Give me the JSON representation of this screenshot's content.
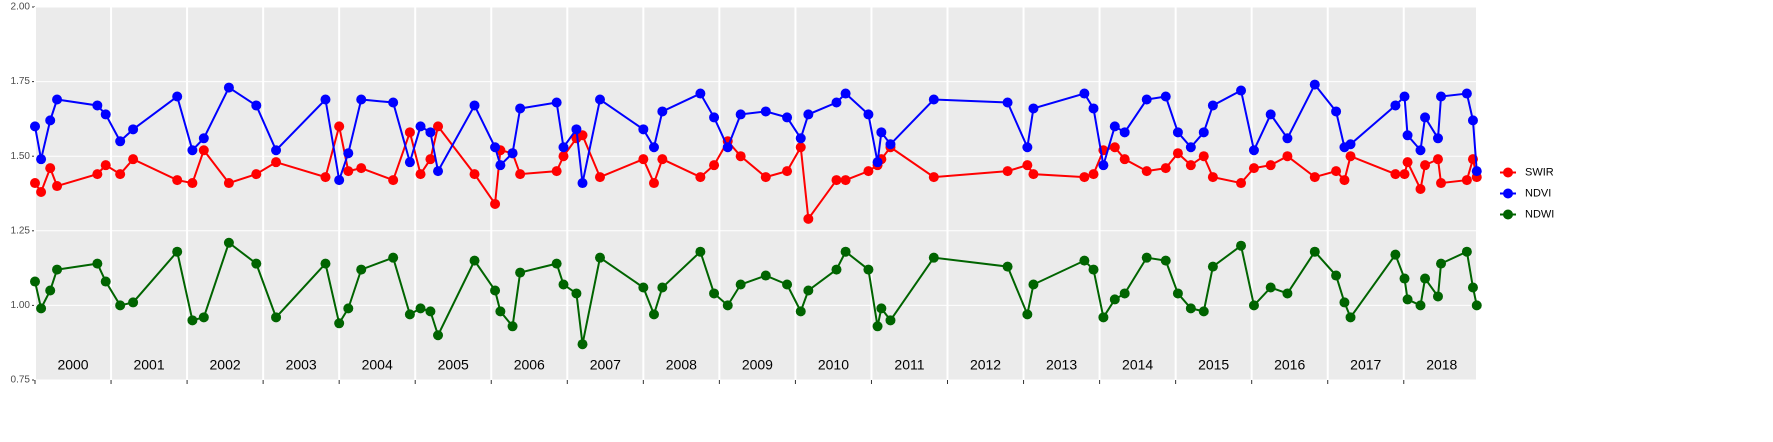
{
  "chart_data": {
    "type": "line",
    "x": [
      2000.0,
      2000.08,
      2000.2,
      2000.29,
      2000.82,
      2000.93,
      2001.12,
      2001.29,
      2001.87,
      2002.07,
      2002.22,
      2002.55,
      2002.91,
      2003.17,
      2003.82,
      2004.0,
      2004.12,
      2004.29,
      2004.71,
      2004.93,
      2005.07,
      2005.2,
      2005.3,
      2005.78,
      2006.05,
      2006.12,
      2006.28,
      2006.38,
      2006.86,
      2006.95,
      2007.12,
      2007.2,
      2007.43,
      2008.0,
      2008.14,
      2008.25,
      2008.75,
      2008.93,
      2009.11,
      2009.28,
      2009.61,
      2009.89,
      2010.07,
      2010.17,
      2010.54,
      2010.66,
      2010.96,
      2011.08,
      2011.13,
      2011.25,
      2011.82,
      2012.79,
      2013.05,
      2013.13,
      2013.8,
      2013.92,
      2014.05,
      2014.2,
      2014.33,
      2014.62,
      2014.87,
      2015.03,
      2015.2,
      2015.37,
      2015.49,
      2015.86,
      2016.03,
      2016.25,
      2016.47,
      2016.83,
      2017.11,
      2017.22,
      2017.3,
      2017.89,
      2018.01,
      2018.05,
      2018.22,
      2018.28,
      2018.45,
      2018.49,
      2018.83,
      2018.91,
      2018.96
    ],
    "series": [
      {
        "name": "SWIR",
        "color": "#ff0000",
        "values": [
          1.41,
          1.38,
          1.46,
          1.4,
          1.44,
          1.47,
          1.44,
          1.49,
          1.42,
          1.41,
          1.52,
          1.41,
          1.44,
          1.48,
          1.43,
          1.6,
          1.45,
          1.46,
          1.42,
          1.58,
          1.44,
          1.49,
          1.6,
          1.44,
          1.34,
          1.52,
          1.51,
          1.44,
          1.45,
          1.5,
          1.56,
          1.57,
          1.43,
          1.49,
          1.41,
          1.49,
          1.43,
          1.47,
          1.55,
          1.5,
          1.43,
          1.45,
          1.53,
          1.29,
          1.42,
          1.42,
          1.45,
          1.47,
          1.49,
          1.53,
          1.43,
          1.45,
          1.47,
          1.44,
          1.43,
          1.44,
          1.52,
          1.53,
          1.49,
          1.45,
          1.46,
          1.51,
          1.47,
          1.5,
          1.43,
          1.41,
          1.46,
          1.47,
          1.5,
          1.43,
          1.45,
          1.42,
          1.5,
          1.44,
          1.44,
          1.48,
          1.39,
          1.47,
          1.49,
          1.41,
          1.42,
          1.49,
          1.43
        ]
      },
      {
        "name": "NDVI",
        "color": "#0000ff",
        "values": [
          1.6,
          1.49,
          1.62,
          1.69,
          1.67,
          1.64,
          1.55,
          1.59,
          1.7,
          1.52,
          1.56,
          1.73,
          1.67,
          1.52,
          1.69,
          1.42,
          1.51,
          1.69,
          1.68,
          1.48,
          1.6,
          1.58,
          1.45,
          1.67,
          1.53,
          1.47,
          1.51,
          1.66,
          1.68,
          1.53,
          1.59,
          1.41,
          1.69,
          1.59,
          1.53,
          1.65,
          1.71,
          1.63,
          1.53,
          1.64,
          1.65,
          1.63,
          1.56,
          1.64,
          1.68,
          1.71,
          1.64,
          1.48,
          1.58,
          1.54,
          1.69,
          1.68,
          1.53,
          1.66,
          1.71,
          1.66,
          1.47,
          1.6,
          1.58,
          1.69,
          1.7,
          1.58,
          1.53,
          1.58,
          1.67,
          1.72,
          1.52,
          1.64,
          1.56,
          1.74,
          1.65,
          1.53,
          1.54,
          1.67,
          1.7,
          1.57,
          1.52,
          1.63,
          1.56,
          1.7,
          1.71,
          1.62,
          1.45
        ]
      },
      {
        "name": "NDWI",
        "color": "#006400",
        "values": [
          1.08,
          0.99,
          1.05,
          1.12,
          1.14,
          1.08,
          1.0,
          1.01,
          1.18,
          0.95,
          0.96,
          1.21,
          1.14,
          0.96,
          1.14,
          0.94,
          0.99,
          1.12,
          1.16,
          0.97,
          0.99,
          0.98,
          0.9,
          1.15,
          1.05,
          0.98,
          0.93,
          1.11,
          1.14,
          1.07,
          1.04,
          0.87,
          1.16,
          1.06,
          0.97,
          1.06,
          1.18,
          1.04,
          1.0,
          1.07,
          1.1,
          1.07,
          0.98,
          1.05,
          1.12,
          1.18,
          1.12,
          0.93,
          0.99,
          0.95,
          1.16,
          1.13,
          0.97,
          1.07,
          1.15,
          1.12,
          0.96,
          1.02,
          1.04,
          1.16,
          1.15,
          1.04,
          0.99,
          0.98,
          1.13,
          1.2,
          1.0,
          1.06,
          1.04,
          1.18,
          1.1,
          1.01,
          0.96,
          1.17,
          1.09,
          1.02,
          1.0,
          1.09,
          1.03,
          1.14,
          1.18,
          1.06,
          1.0
        ]
      }
    ],
    "xlim": [
      2000,
      2018.95
    ],
    "xticks": [
      2000,
      2001,
      2002,
      2003,
      2004,
      2005,
      2006,
      2007,
      2008,
      2009,
      2010,
      2011,
      2012,
      2013,
      2014,
      2015,
      2016,
      2017,
      2018
    ],
    "ylim": [
      0.75,
      2.0
    ],
    "yticks": [
      {
        "value": 0.75,
        "label": "0.75"
      },
      {
        "value": 1.0,
        "label": "1.00"
      },
      {
        "value": 1.25,
        "label": "1.25"
      },
      {
        "value": 1.5,
        "label": "1.50"
      },
      {
        "value": 1.75,
        "label": "1.75"
      },
      {
        "value": 2.0,
        "label": "2.00"
      }
    ],
    "grid": true,
    "legend": "right"
  }
}
